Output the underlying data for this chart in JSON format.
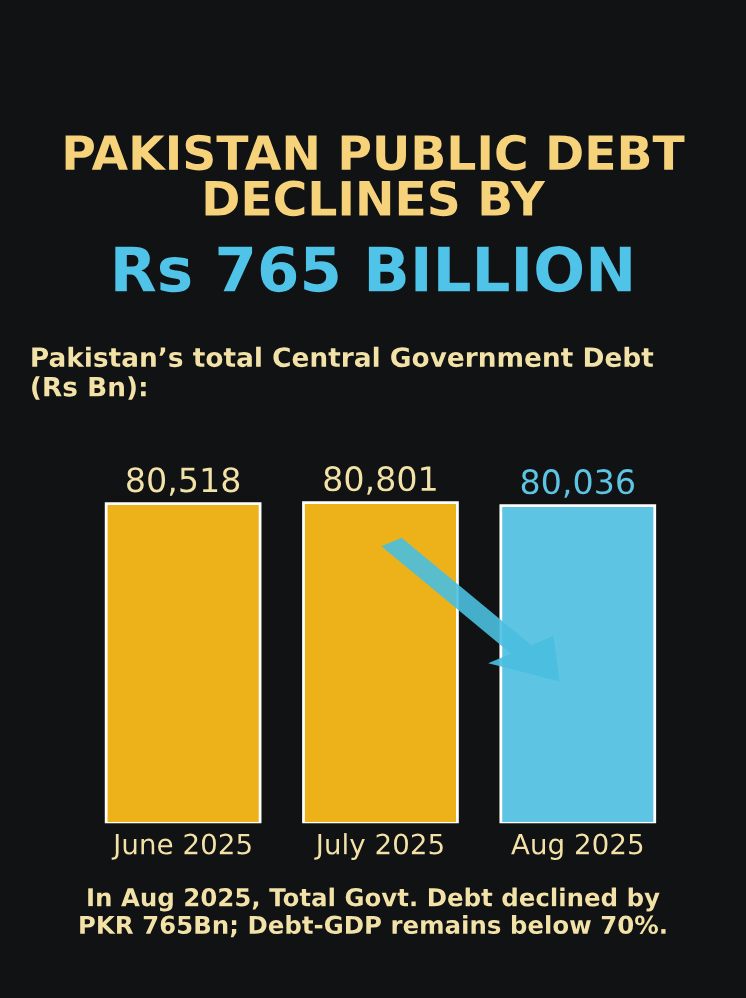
{
  "chart_data": {
    "type": "bar",
    "title": "PAKISTAN PUBLIC DEBT\nDECLINES BY",
    "subtitle": "Rs 765 BILLION",
    "annotations": [
      "Pakistan’s total Central Government Debt\n(Rs Bn):",
      "In Aug 2025, Total Govt. Debt declined by\nPKR 765Bn; Debt-GDP remains below 70%."
    ],
    "categories": [
      "June 2025",
      "July 2025",
      "Aug 2025"
    ],
    "values": [
      80518,
      80801,
      80036
    ],
    "colors": [
      "#edb21a",
      "#edb21a",
      "#5ec4e3"
    ],
    "value_labels": [
      "80,518",
      "80,801",
      "80,036"
    ],
    "grid": false,
    "legend": false
  }
}
